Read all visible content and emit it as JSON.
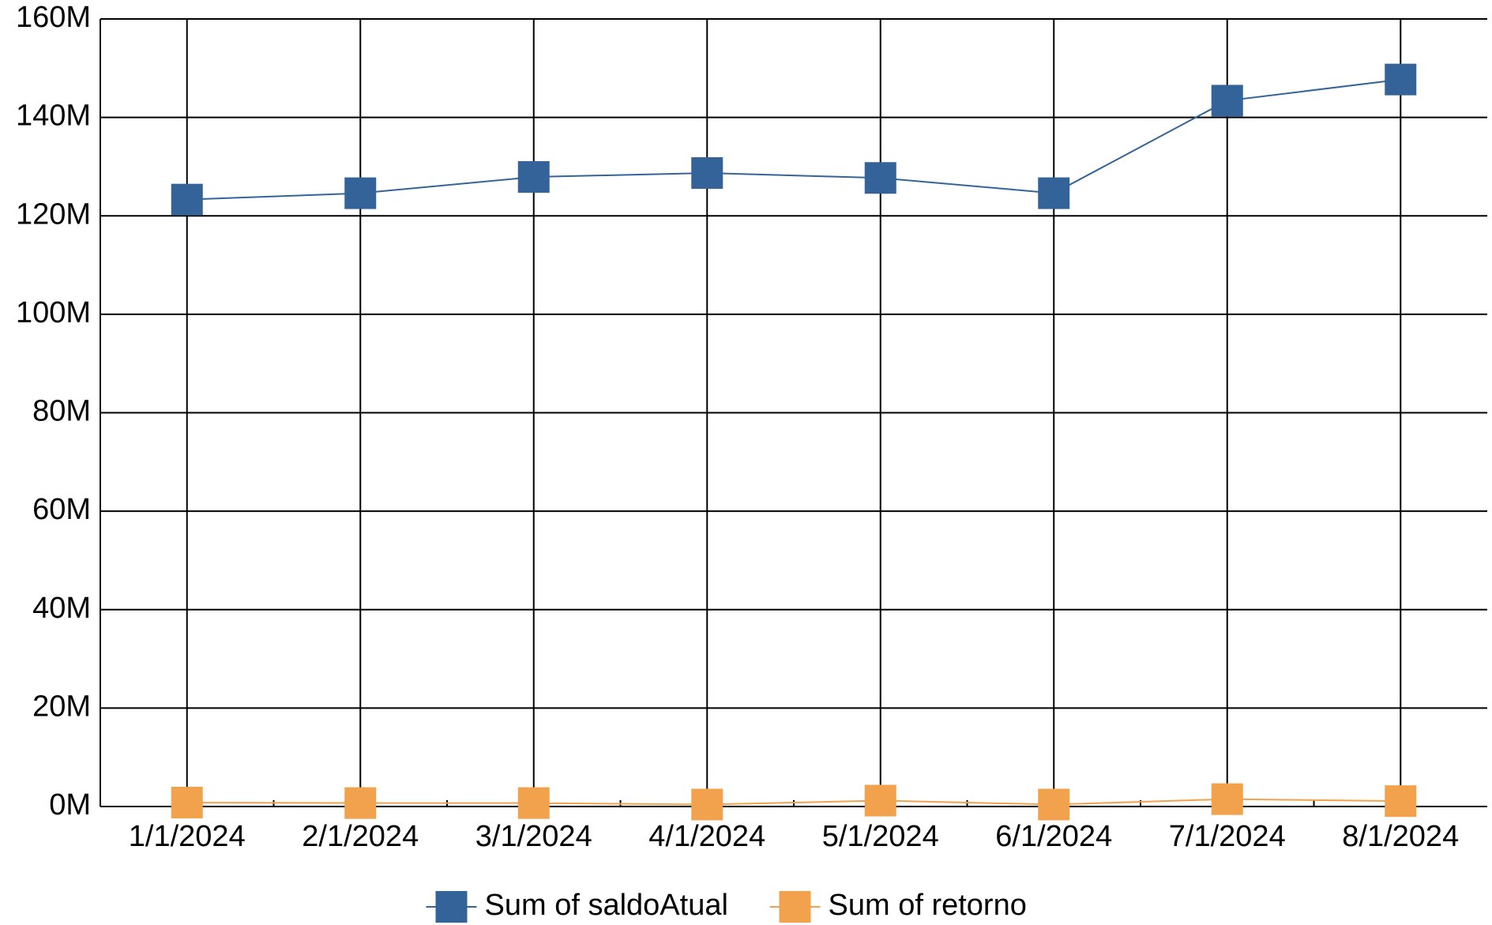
{
  "chart_data": {
    "type": "line",
    "categories": [
      "1/1/2024",
      "2/1/2024",
      "3/1/2024",
      "4/1/2024",
      "5/1/2024",
      "6/1/2024",
      "7/1/2024",
      "8/1/2024"
    ],
    "series": [
      {
        "name": "Sum of saldoAtual",
        "color": "#34639a",
        "values": [
          123300000,
          124600000,
          127900000,
          128700000,
          127700000,
          124600000,
          143400000,
          147700000
        ]
      },
      {
        "name": "Sum of retorno",
        "color": "#f2a24c",
        "values": [
          800000,
          700000,
          700000,
          400000,
          1200000,
          400000,
          1500000,
          1100000
        ]
      }
    ],
    "ylim": [
      0,
      160000000
    ],
    "yticks": [
      {
        "value": 0,
        "label": "0M"
      },
      {
        "value": 20000000,
        "label": "20M"
      },
      {
        "value": 40000000,
        "label": "40M"
      },
      {
        "value": 60000000,
        "label": "60M"
      },
      {
        "value": 80000000,
        "label": "80M"
      },
      {
        "value": 100000000,
        "label": "100M"
      },
      {
        "value": 120000000,
        "label": "120M"
      },
      {
        "value": 140000000,
        "label": "140M"
      },
      {
        "value": 160000000,
        "label": "160M"
      }
    ],
    "grid": true,
    "legend": "bottom"
  }
}
